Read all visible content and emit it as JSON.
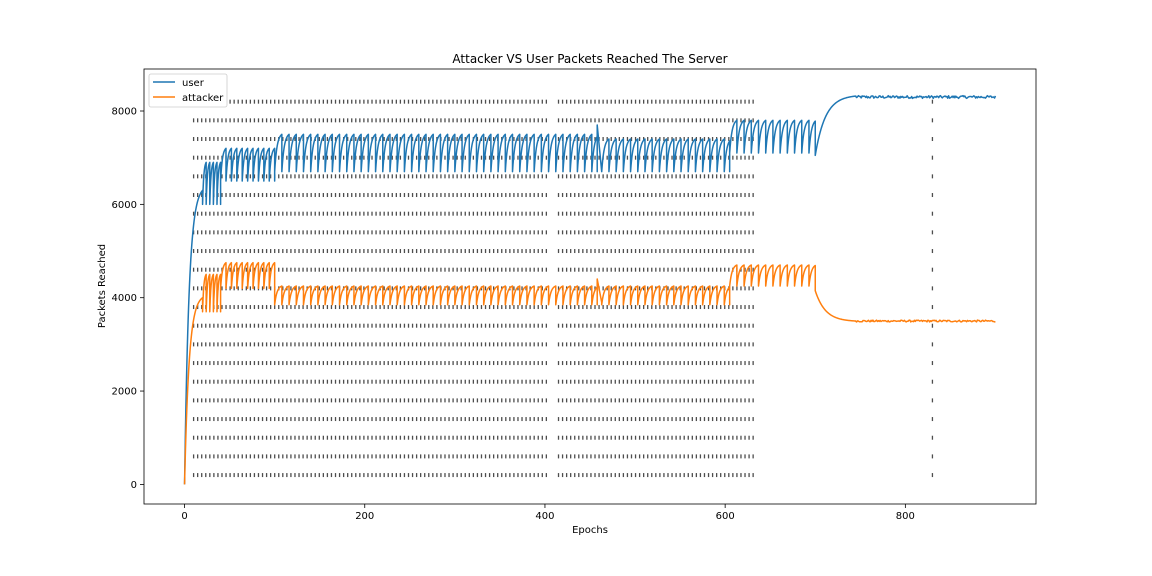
{
  "chart_data": {
    "type": "line",
    "title": "Attacker VS User Packets Reached The Server",
    "xlabel": "Epochs",
    "ylabel": "Packets Reached",
    "xlim": [
      -45,
      945
    ],
    "ylim": [
      -420,
      8900
    ],
    "xticks": [
      0,
      200,
      400,
      600,
      800
    ],
    "yticks": [
      0,
      2000,
      4000,
      6000,
      8000
    ],
    "grid": false,
    "legend": "upper left",
    "series": [
      {
        "name": "user",
        "color": "#1f77b4",
        "segments": [
          {
            "type": "rise",
            "x": [
              0,
              20
            ],
            "y0": 0,
            "y1": 6300
          },
          {
            "type": "saw",
            "x": [
              20,
              40
            ],
            "period": 4,
            "low": 6000,
            "high": 6900
          },
          {
            "type": "saw",
            "x": [
              40,
              100
            ],
            "period": 6,
            "low": 6500,
            "high": 7200
          },
          {
            "type": "saw",
            "x": [
              100,
              458
            ],
            "period": 8,
            "low": 6700,
            "high": 7500
          },
          {
            "type": "ramp",
            "x": [
              458,
              463
            ],
            "y0": 7700,
            "y1": 6700
          },
          {
            "type": "saw",
            "x": [
              463,
              605
            ],
            "period": 8,
            "low": 6700,
            "high": 7400
          },
          {
            "type": "saw",
            "x": [
              605,
              700
            ],
            "period": 8,
            "low": 7100,
            "high": 7800
          },
          {
            "type": "recover",
            "x": [
              700,
              745
            ],
            "y0": 7050,
            "y1": 8320
          },
          {
            "type": "noise",
            "x": [
              745,
              900
            ],
            "base": 8300,
            "amp": 30
          }
        ]
      },
      {
        "name": "attacker",
        "color": "#ff7f0e",
        "segments": [
          {
            "type": "rise",
            "x": [
              0,
              20
            ],
            "y0": 0,
            "y1": 4000
          },
          {
            "type": "saw",
            "x": [
              20,
              40
            ],
            "period": 4,
            "low": 3700,
            "high": 4500
          },
          {
            "type": "saw",
            "x": [
              40,
              100
            ],
            "period": 6,
            "low": 4200,
            "high": 4750
          },
          {
            "type": "saw",
            "x": [
              100,
              458
            ],
            "period": 8,
            "low": 3850,
            "high": 4250
          },
          {
            "type": "ramp",
            "x": [
              458,
              463
            ],
            "y0": 4400,
            "y1": 3900
          },
          {
            "type": "saw",
            "x": [
              463,
              605
            ],
            "period": 8,
            "low": 3850,
            "high": 4250
          },
          {
            "type": "saw",
            "x": [
              605,
              700
            ],
            "period": 8,
            "low": 4250,
            "high": 4700
          },
          {
            "type": "decay",
            "x": [
              700,
              745
            ],
            "y0": 4150,
            "y1": 3500
          },
          {
            "type": "noise",
            "x": [
              745,
              900
            ],
            "base": 3500,
            "amp": 20
          }
        ]
      }
    ],
    "event_markers": {
      "color": "#4d4d4d",
      "x_start": 10,
      "x_end": 635,
      "x_step": 4.5,
      "y_values": [
        8200,
        7800,
        7400,
        7000,
        6600,
        6200,
        5800,
        5400,
        5000,
        4600,
        4200,
        3800,
        3400,
        3000,
        2600,
        2200,
        1800,
        1400,
        1000,
        600,
        200
      ],
      "gap": [
        403,
        413
      ],
      "single_x": 830
    }
  }
}
